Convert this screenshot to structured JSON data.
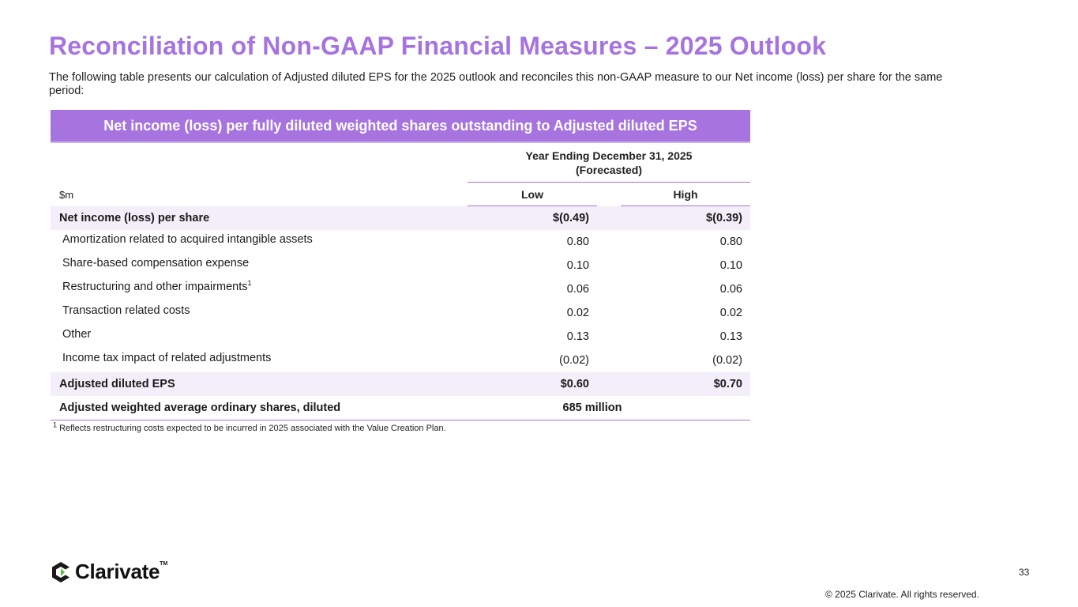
{
  "page": {
    "title": "Reconciliation of Non-GAAP Financial Measures – 2025 Outlook",
    "intro": "The following table presents our calculation of Adjusted diluted EPS for the 2025 outlook and reconciles this non-GAAP measure to our Net income (loss) per share for the same period:"
  },
  "table": {
    "banner": "Net income (loss) per fully diluted weighted shares outstanding to Adjusted diluted EPS",
    "period_line1": "Year Ending December 31, 2025",
    "period_line2": "(Forecasted)",
    "unit": "$m",
    "col_low": "Low",
    "col_high": "High",
    "rows": [
      {
        "label": "Net income (loss) per share",
        "low": "$(0.49)",
        "high": "$(0.39)"
      },
      {
        "label": "Amortization related to acquired intangible assets",
        "low": "0.80",
        "high": "0.80"
      },
      {
        "label": "Share-based compensation expense",
        "low": "0.10",
        "high": "0.10"
      },
      {
        "label": "Restructuring and other impairments",
        "sup": "1",
        "low": "0.06",
        "high": "0.06"
      },
      {
        "label": "Transaction related costs",
        "low": "0.02",
        "high": "0.02"
      },
      {
        "label": "Other",
        "low": "0.13",
        "high": "0.13"
      },
      {
        "label": "Income tax impact of related adjustments",
        "low": "(0.02)",
        "high": "(0.02)"
      },
      {
        "label": "Adjusted diluted EPS",
        "low": "$0.60",
        "high": "$0.70"
      },
      {
        "label": "Adjusted weighted average ordinary shares, diluted",
        "value": "685 million"
      }
    ],
    "footnote_mark": "1",
    "footnote": "Reflects restructuring costs expected to be incurred in 2025 associated with the Value Creation Plan."
  },
  "footer": {
    "logo_text": "Clarivate",
    "logo_tm": "TM",
    "copyright": "© 2025 Clarivate. All rights reserved.",
    "page_number": "33"
  },
  "colors": {
    "accent": "#a673df",
    "row_shade": "#f3eefa",
    "logo_green": "#5fbb46",
    "logo_dark": "#1a1a1a"
  },
  "icons": {
    "logo": "clarivate-logo-icon"
  }
}
